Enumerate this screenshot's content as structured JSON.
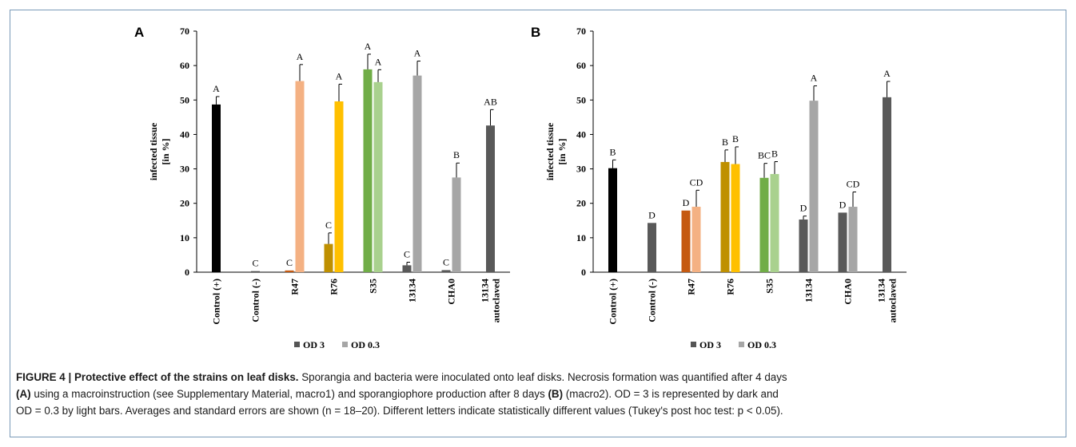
{
  "caption": {
    "label": "FIGURE 4 | Protective effect of the strains on leaf disks.",
    "line1": "Sporangia and bacteria were inoculated onto leaf disks. Necrosis formation was quantified after 4 days",
    "line2_a_tag": "(A)",
    "line2_mid": "using a macroinstruction (see Supplementary Material, macro1) and sporangiophore production after 8 days",
    "line2_b_tag": "(B)",
    "line2_end": "(macro2). OD = 3 is represented by dark and",
    "line3": "OD = 0.3 by light bars. Averages and standard errors are shown (n = 18–20). Different letters indicate statistically different values (Tukey's post hoc test: p < 0.05)."
  },
  "chart_data": [
    {
      "panel": "A",
      "type": "bar",
      "ylabel": "infected tissue [in %]",
      "ylabel_lines": [
        "infected tissue",
        "[in %]"
      ],
      "ylim": [
        0,
        70
      ],
      "yticks": [
        0,
        10,
        20,
        30,
        40,
        50,
        60,
        70
      ],
      "categories": [
        "Control (+)",
        "Control (-)",
        "R47",
        "R76",
        "S35",
        "13134",
        "CHA0",
        "13134 autoclaved"
      ],
      "category_lines": [
        [
          "Control (+)"
        ],
        [
          "Control (-)"
        ],
        [
          "R47"
        ],
        [
          "R76"
        ],
        [
          "S35"
        ],
        [
          "13134"
        ],
        [
          "CHA0"
        ],
        [
          "13134",
          "autoclaved"
        ]
      ],
      "legend": [
        "OD 3",
        "OD 0.3"
      ],
      "legend_colors": [
        "#555555",
        "#a6a6a6"
      ],
      "legend_position": "bottom",
      "bars": [
        {
          "cat": 0,
          "slot": "single",
          "value": 48.7,
          "err": 2.3,
          "letter": "A",
          "color": "#000000"
        },
        {
          "cat": 1,
          "slot": "single",
          "value": 0.3,
          "err": 0,
          "letter": "C",
          "color": "#4d4d4d"
        },
        {
          "cat": 2,
          "slot": "dark",
          "value": 0.5,
          "err": 0,
          "letter": "C",
          "color": "#c55a11"
        },
        {
          "cat": 2,
          "slot": "light",
          "value": 55.5,
          "err": 4.8,
          "letter": "A",
          "color": "#f4b183"
        },
        {
          "cat": 3,
          "slot": "dark",
          "value": 8.2,
          "err": 3.2,
          "letter": "C",
          "color": "#bf9000"
        },
        {
          "cat": 3,
          "slot": "light",
          "value": 49.6,
          "err": 5.0,
          "letter": "A",
          "color": "#ffc000"
        },
        {
          "cat": 4,
          "slot": "dark",
          "value": 58.9,
          "err": 4.4,
          "letter": "A",
          "color": "#70ad47"
        },
        {
          "cat": 4,
          "slot": "light",
          "value": 55.2,
          "err": 3.6,
          "letter": "A",
          "color": "#a9d18e"
        },
        {
          "cat": 5,
          "slot": "dark",
          "value": 2.0,
          "err": 0.9,
          "letter": "C",
          "color": "#595959"
        },
        {
          "cat": 5,
          "slot": "light",
          "value": 57.1,
          "err": 4.2,
          "letter": "A",
          "color": "#a6a6a6"
        },
        {
          "cat": 6,
          "slot": "dark",
          "value": 0.6,
          "err": 0,
          "letter": "C",
          "color": "#595959"
        },
        {
          "cat": 6,
          "slot": "light",
          "value": 27.5,
          "err": 4.2,
          "letter": "B",
          "color": "#a6a6a6"
        },
        {
          "cat": 7,
          "slot": "single",
          "value": 42.6,
          "err": 4.6,
          "letter": "AB",
          "color": "#595959"
        }
      ]
    },
    {
      "panel": "B",
      "type": "bar",
      "ylabel": "infected tissue [in %]",
      "ylabel_lines": [
        "infected tissue",
        "[in %]"
      ],
      "ylim": [
        0,
        70
      ],
      "yticks": [
        0,
        10,
        20,
        30,
        40,
        50,
        60,
        70
      ],
      "categories": [
        "Control (+)",
        "Control (-)",
        "R47",
        "R76",
        "S35",
        "13134",
        "CHA0",
        "13134 autoclaved"
      ],
      "category_lines": [
        [
          "Control (+)"
        ],
        [
          "Control (-)"
        ],
        [
          "R47"
        ],
        [
          "R76"
        ],
        [
          "S35"
        ],
        [
          "13134"
        ],
        [
          "CHA0"
        ],
        [
          "13134",
          "autoclaved"
        ]
      ],
      "legend": [
        "OD 3",
        "OD 0.3"
      ],
      "legend_colors": [
        "#555555",
        "#a6a6a6"
      ],
      "legend_position": "bottom",
      "bars": [
        {
          "cat": 0,
          "slot": "single",
          "value": 30.2,
          "err": 2.4,
          "letter": "B",
          "color": "#000000"
        },
        {
          "cat": 1,
          "slot": "single",
          "value": 14.3,
          "err": 0,
          "letter": "D",
          "color": "#595959"
        },
        {
          "cat": 2,
          "slot": "dark",
          "value": 17.9,
          "err": 0,
          "letter": "D",
          "color": "#c55a11"
        },
        {
          "cat": 2,
          "slot": "light",
          "value": 19.0,
          "err": 4.8,
          "letter": "CD",
          "color": "#f4b183"
        },
        {
          "cat": 3,
          "slot": "dark",
          "value": 32.0,
          "err": 3.5,
          "letter": "B",
          "color": "#bf9000"
        },
        {
          "cat": 3,
          "slot": "light",
          "value": 31.4,
          "err": 5.0,
          "letter": "B",
          "color": "#ffc000"
        },
        {
          "cat": 4,
          "slot": "dark",
          "value": 27.4,
          "err": 4.2,
          "letter": "BC",
          "color": "#70ad47"
        },
        {
          "cat": 4,
          "slot": "light",
          "value": 28.5,
          "err": 3.6,
          "letter": "B",
          "color": "#a9d18e"
        },
        {
          "cat": 5,
          "slot": "dark",
          "value": 15.3,
          "err": 1.0,
          "letter": "D",
          "color": "#595959"
        },
        {
          "cat": 5,
          "slot": "light",
          "value": 49.8,
          "err": 4.3,
          "letter": "A",
          "color": "#a6a6a6"
        },
        {
          "cat": 6,
          "slot": "dark",
          "value": 17.3,
          "err": 0,
          "letter": "D",
          "color": "#595959"
        },
        {
          "cat": 6,
          "slot": "light",
          "value": 19.0,
          "err": 4.3,
          "letter": "CD",
          "color": "#a6a6a6"
        },
        {
          "cat": 7,
          "slot": "single",
          "value": 50.8,
          "err": 4.6,
          "letter": "A",
          "color": "#595959"
        }
      ]
    }
  ]
}
